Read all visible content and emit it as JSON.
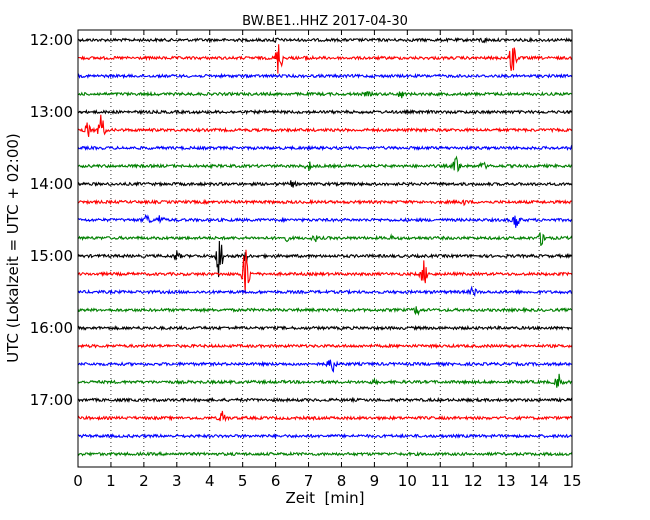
{
  "chart_data": {
    "type": "line",
    "title": "BW.BE1..HHZ 2017-04-30",
    "xlabel": "Zeit  [min]",
    "ylabel": "UTC (Lokalzeit = UTC + 02:00)",
    "xlim": [
      0,
      15
    ],
    "x_ticks": [
      "0",
      "1",
      "2",
      "3",
      "4",
      "5",
      "6",
      "7",
      "8",
      "9",
      "10",
      "11",
      "12",
      "13",
      "14",
      "15"
    ],
    "y_tick_labels": [
      "12:00",
      "13:00",
      "14:00",
      "15:00",
      "16:00",
      "17:00"
    ],
    "grid": true,
    "line_interval_min": 15,
    "trace_colors": [
      "#000000",
      "#ff0000",
      "#0000ff",
      "#008000"
    ],
    "traces": [
      {
        "start": "12:00",
        "events": [
          {
            "t": 12.3,
            "amp": 0.15
          },
          {
            "t": 6.0,
            "amp": 0.1
          }
        ]
      },
      {
        "start": "12:15",
        "events": [
          {
            "t": 6.1,
            "amp": 1.3
          },
          {
            "t": 13.2,
            "amp": 1.3
          },
          {
            "t": 7.0,
            "amp": 0.2
          }
        ]
      },
      {
        "start": "12:30",
        "events": []
      },
      {
        "start": "12:45",
        "events": [
          {
            "t": 9.8,
            "amp": 0.25
          },
          {
            "t": 8.8,
            "amp": 0.1
          }
        ]
      },
      {
        "start": "13:00",
        "events": []
      },
      {
        "start": "13:15",
        "events": [
          {
            "t": 0.3,
            "amp": 0.5
          },
          {
            "t": 0.7,
            "amp": 1.1
          }
        ]
      },
      {
        "start": "13:30",
        "events": []
      },
      {
        "start": "13:45",
        "events": [
          {
            "t": 11.5,
            "amp": 0.7
          },
          {
            "t": 7.0,
            "amp": 0.3
          },
          {
            "t": 12.3,
            "amp": 0.2
          }
        ]
      },
      {
        "start": "14:00",
        "events": [
          {
            "t": 6.5,
            "amp": 0.2
          }
        ]
      },
      {
        "start": "14:15",
        "events": [
          {
            "t": 11.7,
            "amp": 0.15
          }
        ]
      },
      {
        "start": "14:30",
        "events": [
          {
            "t": 2.1,
            "amp": 0.4
          },
          {
            "t": 2.5,
            "amp": 0.35
          },
          {
            "t": 13.3,
            "amp": 0.7
          }
        ]
      },
      {
        "start": "14:45",
        "events": [
          {
            "t": 14.1,
            "amp": 0.6
          },
          {
            "t": 6.3,
            "amp": 0.2
          },
          {
            "t": 7.2,
            "amp": 0.2
          },
          {
            "t": 9.5,
            "amp": 0.1
          }
        ]
      },
      {
        "start": "15:00",
        "events": [
          {
            "t": 3.0,
            "amp": 0.3
          },
          {
            "t": 4.3,
            "amp": 1.7
          },
          {
            "t": 5.1,
            "amp": 0.35
          }
        ]
      },
      {
        "start": "15:15",
        "events": [
          {
            "t": 5.1,
            "amp": 2.2
          },
          {
            "t": 10.5,
            "amp": 0.9
          }
        ]
      },
      {
        "start": "15:30",
        "events": [
          {
            "t": 12.0,
            "amp": 0.3
          }
        ]
      },
      {
        "start": "15:45",
        "events": [
          {
            "t": 10.3,
            "amp": 0.3
          }
        ]
      },
      {
        "start": "16:00",
        "events": []
      },
      {
        "start": "16:15",
        "events": []
      },
      {
        "start": "16:30",
        "events": [
          {
            "t": 7.7,
            "amp": 0.8
          }
        ]
      },
      {
        "start": "16:45",
        "events": [
          {
            "t": 14.6,
            "amp": 0.6
          },
          {
            "t": 9.0,
            "amp": 0.1
          }
        ]
      },
      {
        "start": "17:00",
        "events": []
      },
      {
        "start": "17:15",
        "events": [
          {
            "t": 4.4,
            "amp": 0.5
          }
        ]
      },
      {
        "start": "17:30",
        "events": []
      },
      {
        "start": "17:45",
        "events": []
      }
    ]
  }
}
